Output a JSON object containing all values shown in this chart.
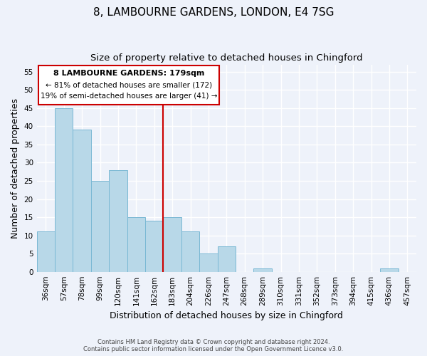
{
  "title": "8, LAMBOURNE GARDENS, LONDON, E4 7SG",
  "subtitle": "Size of property relative to detached houses in Chingford",
  "xlabel": "Distribution of detached houses by size in Chingford",
  "ylabel": "Number of detached properties",
  "bar_labels": [
    "36sqm",
    "57sqm",
    "78sqm",
    "99sqm",
    "120sqm",
    "141sqm",
    "162sqm",
    "183sqm",
    "204sqm",
    "226sqm",
    "247sqm",
    "268sqm",
    "289sqm",
    "310sqm",
    "331sqm",
    "352sqm",
    "373sqm",
    "394sqm",
    "415sqm",
    "436sqm",
    "457sqm"
  ],
  "bar_values": [
    11,
    45,
    39,
    25,
    28,
    15,
    14,
    15,
    11,
    5,
    7,
    0,
    1,
    0,
    0,
    0,
    0,
    0,
    0,
    1,
    0
  ],
  "bar_color": "#b8d8e8",
  "bar_edge_color": "#7ab8d4",
  "vline_x_left": 6.5,
  "vline_color": "#cc0000",
  "ylim_max": 57,
  "yticks": [
    0,
    5,
    10,
    15,
    20,
    25,
    30,
    35,
    40,
    45,
    50,
    55
  ],
  "annotation_title": "8 LAMBOURNE GARDENS: 179sqm",
  "annotation_line1": "← 81% of detached houses are smaller (172)",
  "annotation_line2": "19% of semi-detached houses are larger (41) →",
  "annotation_box_color": "#ffffff",
  "annotation_box_edge": "#cc0000",
  "footer_line1": "Contains HM Land Registry data © Crown copyright and database right 2024.",
  "footer_line2": "Contains public sector information licensed under the Open Government Licence v3.0.",
  "background_color": "#eef2fa",
  "grid_color": "#ffffff",
  "title_fontsize": 11,
  "subtitle_fontsize": 9.5,
  "axis_label_fontsize": 9,
  "tick_fontsize": 7.5,
  "footer_fontsize": 6.0
}
